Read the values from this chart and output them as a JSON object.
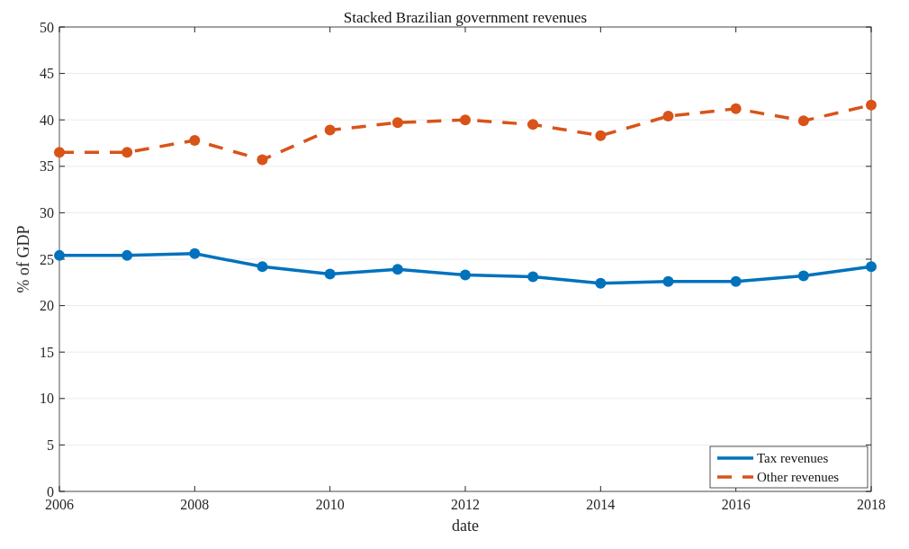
{
  "chart_data": {
    "type": "line",
    "title": "Stacked Brazilian government revenues",
    "xlabel": "date",
    "ylabel": "% of GDP",
    "x": [
      2006,
      2007,
      2008,
      2009,
      2010,
      2011,
      2012,
      2013,
      2014,
      2015,
      2016,
      2017,
      2018
    ],
    "series": [
      {
        "name": "Tax revenues",
        "color": "#0072bd",
        "line_style": "solid",
        "values": [
          25.4,
          25.4,
          25.6,
          24.2,
          23.4,
          23.9,
          23.3,
          23.1,
          22.4,
          22.6,
          22.6,
          23.2,
          24.2
        ]
      },
      {
        "name": "Other revenues",
        "color": "#d95319",
        "line_style": "dashed",
        "values": [
          36.5,
          36.5,
          37.8,
          35.7,
          38.9,
          39.7,
          40.0,
          39.5,
          38.3,
          40.4,
          41.2,
          39.9,
          41.6
        ]
      }
    ],
    "xlim": [
      2006,
      2018
    ],
    "xticks": [
      2006,
      2008,
      2010,
      2012,
      2014,
      2016,
      2018
    ],
    "ylim": [
      0,
      50
    ],
    "yticks": [
      0,
      5,
      10,
      15,
      20,
      25,
      30,
      35,
      40,
      45,
      50
    ],
    "grid": "y",
    "legend": "bottom right",
    "marker": "circle"
  }
}
